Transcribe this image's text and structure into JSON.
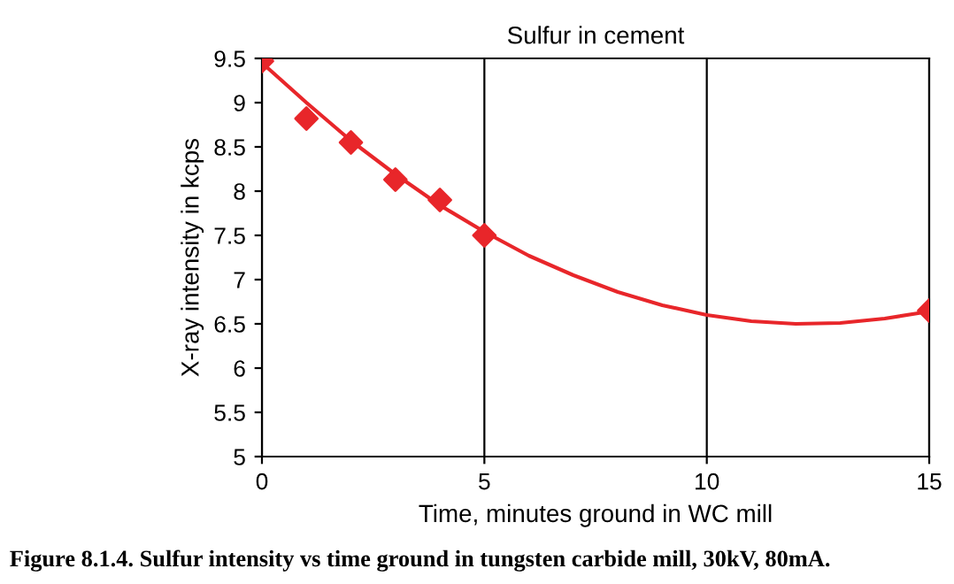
{
  "chart_data": {
    "type": "scatter",
    "title": "Sulfur in cement",
    "xlabel": "Time, minutes ground in WC mill",
    "ylabel": "X-ray intensity in kcps",
    "series": [
      {
        "color": "#e8262a",
        "marker": "diamond",
        "x": [
          0,
          1,
          2,
          3,
          4,
          5,
          15
        ],
        "values": [
          9.47,
          8.82,
          8.55,
          8.13,
          7.9,
          7.5,
          6.65
        ]
      },
      {
        "type": "line",
        "color": "#e8262a",
        "marker": "none",
        "x": [
          0,
          1,
          2,
          3,
          4,
          5,
          6,
          7,
          8,
          9,
          10,
          11,
          12,
          13,
          14,
          15
        ],
        "values": [
          9.45,
          9.0,
          8.57,
          8.19,
          7.84,
          7.54,
          7.27,
          7.05,
          6.86,
          6.71,
          6.6,
          6.53,
          6.5,
          6.51,
          6.56,
          6.64
        ]
      }
    ],
    "xlim": [
      0,
      15
    ],
    "xticks": [
      0,
      5,
      10,
      15
    ],
    "ylim": [
      5,
      9.5
    ],
    "yticks": [
      5,
      5.5,
      6,
      6.5,
      7,
      7.5,
      8,
      8.5,
      9,
      9.5
    ],
    "grid": "x",
    "annotations": [
      "Figure 8.1.4. Sulfur intensity vs time ground in tungsten carbide mill, 30kV, 80mA."
    ]
  }
}
